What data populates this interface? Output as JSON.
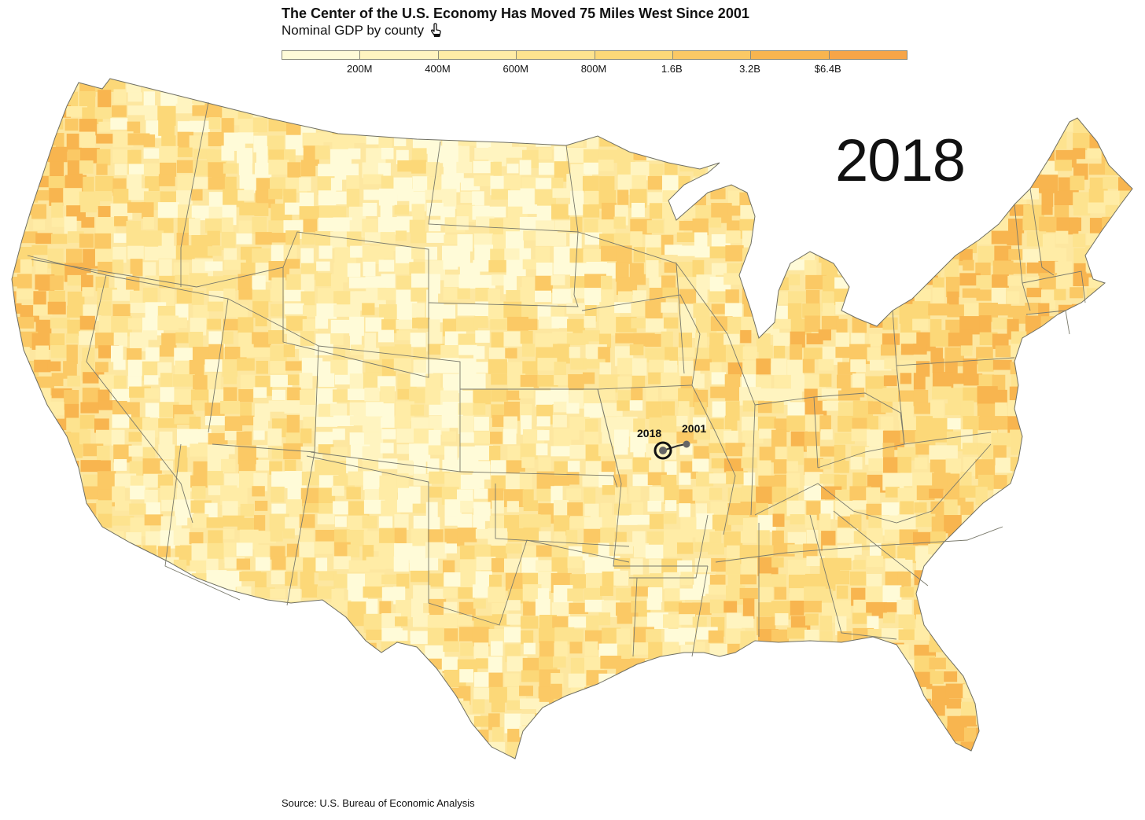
{
  "header": {
    "title": "The Center of the U.S. Economy Has Moved 75 Miles West Since 2001",
    "subtitle": "Nominal GDP by county"
  },
  "legend": {
    "bins": [
      "#fffbd8",
      "#fff4c0",
      "#ffeca6",
      "#fde38f",
      "#fcd878",
      "#fbc965",
      "#f8b54f",
      "#f7a547"
    ],
    "labels": [
      "200M",
      "400M",
      "600M",
      "800M",
      "1.6B",
      "3.2B",
      "$6.4B"
    ]
  },
  "map": {
    "year": "2018",
    "markers": {
      "current_label": "2018",
      "previous_label": "2001"
    }
  },
  "footer": {
    "source": "Source: U.S. Bureau of Economic Analysis"
  }
}
